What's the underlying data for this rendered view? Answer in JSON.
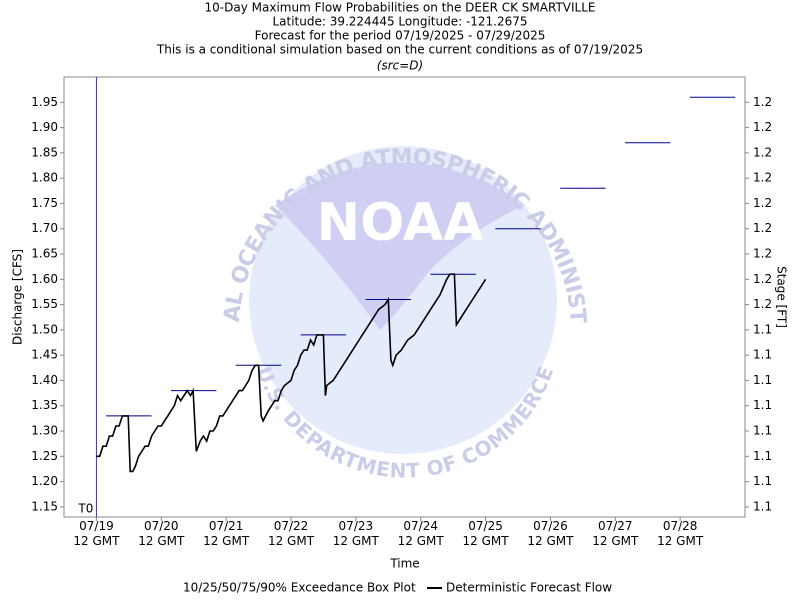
{
  "chart_data": {
    "type": "line",
    "title": "10-Day Maximum Flow Probabilities on the DEER CK SMARTVILLE",
    "subtitle_lines": [
      "Latitude: 39.224445 Longitude: -121.2675",
      "Forecast for the period 07/19/2025 - 07/29/2025",
      "This is a conditional simulation based on the current conditions as of 07/19/2025",
      "(src=D)"
    ],
    "xlabel": "Time",
    "ylabel": "Discharge [CFS]",
    "y2label": "Stage [FT]",
    "xlim": [
      -0.5,
      10
    ],
    "xticks": [
      {
        "value": 0,
        "label": "07/19\n12 GMT"
      },
      {
        "value": 1,
        "label": "07/20\n12 GMT"
      },
      {
        "value": 2,
        "label": "07/21\n12 GMT"
      },
      {
        "value": 3,
        "label": "07/22\n12 GMT"
      },
      {
        "value": 4,
        "label": "07/23\n12 GMT"
      },
      {
        "value": 5,
        "label": "07/24\n12 GMT"
      },
      {
        "value": 6,
        "label": "07/25\n12 GMT"
      },
      {
        "value": 7,
        "label": "07/26\n12 GMT"
      },
      {
        "value": 8,
        "label": "07/27\n12 GMT"
      },
      {
        "value": 9,
        "label": "07/28\n12 GMT"
      }
    ],
    "ylim": [
      1.13,
      2.0
    ],
    "yticks": [
      {
        "value": 1.15,
        "label": "1.15"
      },
      {
        "value": 1.2,
        "label": "1.20"
      },
      {
        "value": 1.25,
        "label": "1.25"
      },
      {
        "value": 1.3,
        "label": "1.30"
      },
      {
        "value": 1.35,
        "label": "1.35"
      },
      {
        "value": 1.4,
        "label": "1.40"
      },
      {
        "value": 1.45,
        "label": "1.45"
      },
      {
        "value": 1.5,
        "label": "1.50"
      },
      {
        "value": 1.55,
        "label": "1.55"
      },
      {
        "value": 1.6,
        "label": "1.60"
      },
      {
        "value": 1.65,
        "label": "1.65"
      },
      {
        "value": 1.7,
        "label": "1.70"
      },
      {
        "value": 1.75,
        "label": "1.75"
      },
      {
        "value": 1.8,
        "label": "1.80"
      },
      {
        "value": 1.85,
        "label": "1.85"
      },
      {
        "value": 1.9,
        "label": "1.90"
      },
      {
        "value": 1.95,
        "label": "1.95"
      }
    ],
    "y2lim": [
      1.071,
      1.245
    ],
    "y2ticks": [
      {
        "value": 1.075,
        "label": "1.1"
      },
      {
        "value": 1.085,
        "label": "1.1"
      },
      {
        "value": 1.095,
        "label": "1.1"
      },
      {
        "value": 1.105,
        "label": "1.1"
      },
      {
        "value": 1.115,
        "label": "1.1"
      },
      {
        "value": 1.125,
        "label": "1.1"
      },
      {
        "value": 1.135,
        "label": "1.1"
      },
      {
        "value": 1.145,
        "label": "1.1"
      },
      {
        "value": 1.155,
        "label": "1.2"
      },
      {
        "value": 1.165,
        "label": "1.2"
      },
      {
        "value": 1.175,
        "label": "1.2"
      },
      {
        "value": 1.185,
        "label": "1.2"
      },
      {
        "value": 1.195,
        "label": "1.2"
      },
      {
        "value": 1.205,
        "label": "1.2"
      },
      {
        "value": 1.215,
        "label": "1.2"
      },
      {
        "value": 1.225,
        "label": "1.2"
      },
      {
        "value": 1.235,
        "label": "1.2"
      }
    ],
    "series": [
      {
        "name": "10/25/50/75/90% Exceedance Box Plot",
        "type": "box",
        "color": "#00008b",
        "x": [
          0.5,
          1.5,
          2.5,
          3.5,
          4.5,
          5.5,
          6.5,
          7.5,
          8.5,
          9.5
        ],
        "values": [
          1.33,
          1.38,
          1.43,
          1.49,
          1.56,
          1.61,
          1.7,
          1.78,
          1.87,
          1.96
        ]
      },
      {
        "name": "Deterministic Forecast Flow",
        "type": "line",
        "color": "#000000",
        "x": [
          0,
          0.05,
          0.1,
          0.15,
          0.2,
          0.25,
          0.3,
          0.35,
          0.4,
          0.45,
          0.49,
          0.52,
          0.56,
          0.6,
          0.65,
          0.7,
          0.75,
          0.8,
          0.85,
          0.9,
          0.95,
          1.0,
          1.05,
          1.1,
          1.15,
          1.2,
          1.25,
          1.3,
          1.35,
          1.4,
          1.45,
          1.49,
          1.54,
          1.6,
          1.65,
          1.7,
          1.75,
          1.8,
          1.85,
          1.9,
          1.95,
          2.0,
          2.05,
          2.1,
          2.15,
          2.2,
          2.25,
          2.3,
          2.35,
          2.4,
          2.45,
          2.5,
          2.54,
          2.57,
          2.65,
          2.75,
          2.8,
          2.85,
          2.9,
          3.0,
          3.05,
          3.1,
          3.15,
          3.2,
          3.25,
          3.3,
          3.35,
          3.4,
          3.45,
          3.5,
          3.53,
          3.55,
          3.65,
          3.7,
          3.8,
          3.9,
          4.0,
          4.05,
          4.1,
          4.15,
          4.2,
          4.3,
          4.35,
          4.45,
          4.5,
          4.54,
          4.57,
          4.62,
          4.7,
          4.8,
          4.9,
          5.0,
          5.1,
          5.2,
          5.3,
          5.4,
          5.45,
          5.52,
          5.55,
          5.6,
          5.7,
          5.8,
          5.9,
          6.0
        ],
        "values": [
          1.25,
          1.25,
          1.27,
          1.27,
          1.29,
          1.29,
          1.31,
          1.31,
          1.33,
          1.33,
          1.33,
          1.22,
          1.22,
          1.23,
          1.25,
          1.26,
          1.27,
          1.27,
          1.29,
          1.3,
          1.31,
          1.31,
          1.32,
          1.33,
          1.34,
          1.35,
          1.37,
          1.36,
          1.37,
          1.38,
          1.37,
          1.38,
          1.26,
          1.28,
          1.29,
          1.28,
          1.3,
          1.3,
          1.31,
          1.33,
          1.33,
          1.34,
          1.35,
          1.36,
          1.37,
          1.38,
          1.38,
          1.39,
          1.4,
          1.42,
          1.43,
          1.43,
          1.33,
          1.32,
          1.34,
          1.36,
          1.36,
          1.38,
          1.39,
          1.4,
          1.42,
          1.43,
          1.45,
          1.46,
          1.46,
          1.48,
          1.47,
          1.49,
          1.49,
          1.49,
          1.37,
          1.39,
          1.4,
          1.41,
          1.43,
          1.45,
          1.47,
          1.48,
          1.49,
          1.5,
          1.51,
          1.53,
          1.54,
          1.55,
          1.56,
          1.44,
          1.43,
          1.45,
          1.46,
          1.48,
          1.49,
          1.51,
          1.53,
          1.55,
          1.57,
          1.6,
          1.61,
          1.61,
          1.51,
          1.52,
          1.54,
          1.56,
          1.58,
          1.6
        ]
      }
    ],
    "annotations": [
      {
        "text": "T0",
        "x": 0,
        "color": "#3333cc"
      }
    ],
    "watermark": {
      "logo": "NOAA",
      "ring_top": "NATIONAL OCEANIC AND ATMOSPHERIC ADMINISTRATION",
      "ring_bottom": "U.S. DEPARTMENT OF COMMERCE"
    },
    "legend": "bottom"
  }
}
